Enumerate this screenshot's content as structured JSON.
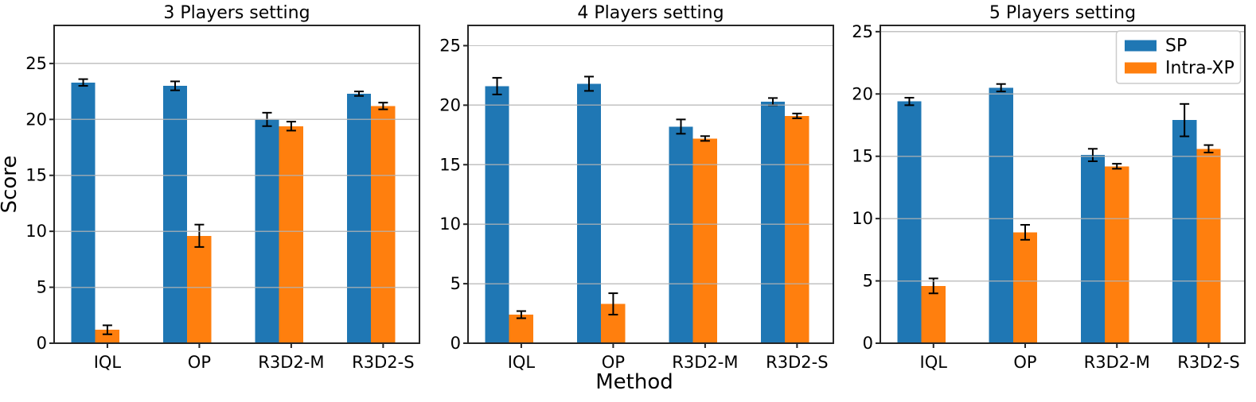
{
  "figure": {
    "background": "#ffffff",
    "grid_color": "#b3b3b3",
    "axis_color": "#262626",
    "errorbar_color": "#000000",
    "legend_border_color": "#cccccc"
  },
  "chart_data": [
    {
      "type": "bar",
      "title": "3 Players setting",
      "categories": [
        "IQL",
        "OP",
        "R3D2-M",
        "R3D2-S"
      ],
      "series": [
        {
          "name": "SP",
          "color": "#1f77b4",
          "values": [
            23.3,
            23.0,
            20.0,
            22.3
          ],
          "errors": [
            0.3,
            0.4,
            0.6,
            0.2
          ]
        },
        {
          "name": "Intra-XP",
          "color": "#ff7f0e",
          "values": [
            1.2,
            9.6,
            19.4,
            21.2
          ],
          "errors": [
            0.4,
            1.0,
            0.4,
            0.3
          ]
        }
      ],
      "xlabel": "",
      "ylabel": "Score",
      "ylim": [
        0,
        28.4
      ],
      "yticks": [
        0,
        5,
        10,
        15,
        20,
        25
      ],
      "grid": true,
      "legend": false
    },
    {
      "type": "bar",
      "title": "4 Players setting",
      "categories": [
        "IQL",
        "OP",
        "R3D2-M",
        "R3D2-S"
      ],
      "series": [
        {
          "name": "SP",
          "color": "#1f77b4",
          "values": [
            21.6,
            21.8,
            18.2,
            20.3
          ],
          "errors": [
            0.7,
            0.6,
            0.6,
            0.3
          ]
        },
        {
          "name": "Intra-XP",
          "color": "#ff7f0e",
          "values": [
            2.4,
            3.3,
            17.2,
            19.1
          ],
          "errors": [
            0.3,
            0.9,
            0.2,
            0.2
          ]
        }
      ],
      "xlabel": "Method",
      "ylabel": "",
      "ylim": [
        0,
        26.7
      ],
      "yticks": [
        0,
        5,
        10,
        15,
        20,
        25
      ],
      "grid": true,
      "legend": false
    },
    {
      "type": "bar",
      "title": "5 Players setting",
      "categories": [
        "IQL",
        "OP",
        "R3D2-M",
        "R3D2-S"
      ],
      "series": [
        {
          "name": "SP",
          "color": "#1f77b4",
          "values": [
            19.4,
            20.5,
            15.1,
            17.9
          ],
          "errors": [
            0.3,
            0.3,
            0.5,
            1.3
          ]
        },
        {
          "name": "Intra-XP",
          "color": "#ff7f0e",
          "values": [
            4.6,
            8.9,
            14.2,
            15.6
          ],
          "errors": [
            0.6,
            0.6,
            0.2,
            0.3
          ]
        }
      ],
      "xlabel": "",
      "ylabel": "",
      "ylim": [
        0,
        25.5
      ],
      "yticks": [
        0,
        5,
        10,
        15,
        20,
        25
      ],
      "grid": true,
      "legend": true,
      "legend_position": "upper right"
    }
  ]
}
